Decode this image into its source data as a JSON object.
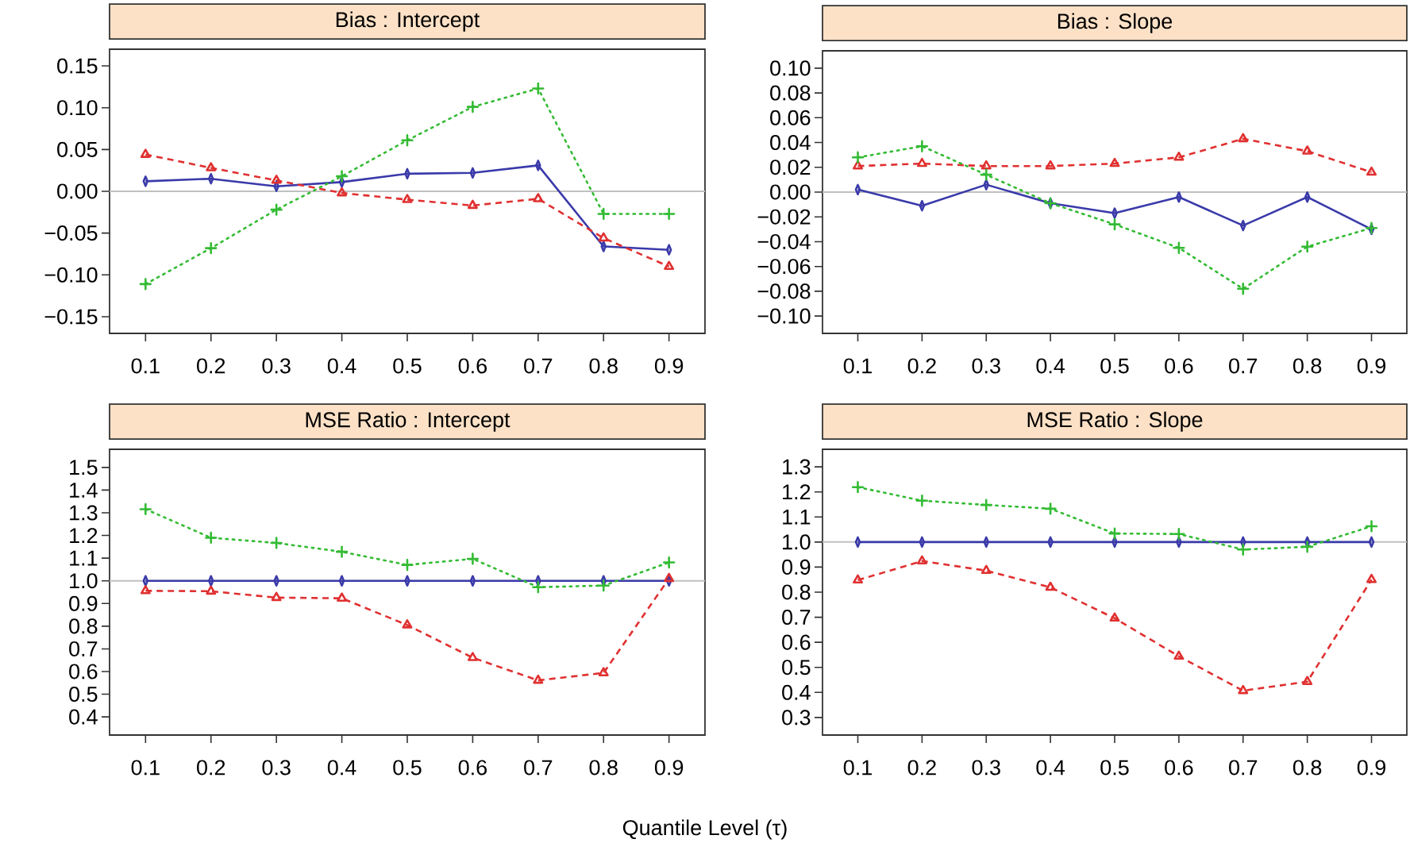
{
  "chart_data": [
    {
      "type": "line",
      "title": "Bias : Intercept",
      "x": [
        0.1,
        0.2,
        0.3,
        0.4,
        0.5,
        0.6,
        0.7,
        0.8,
        0.9
      ],
      "xlim": [
        0.045,
        0.955
      ],
      "xticks": [
        0.1,
        0.2,
        0.3,
        0.4,
        0.5,
        0.6,
        0.7,
        0.8,
        0.9
      ],
      "ylim": [
        -0.17,
        0.17
      ],
      "yticks": [
        {
          "value": -0.15,
          "label": "−0.15"
        },
        {
          "value": -0.1,
          "label": "−0.10"
        },
        {
          "value": -0.05,
          "label": "−0.05"
        },
        {
          "value": 0,
          "label": "0.00"
        },
        {
          "value": 0.05,
          "label": "0.05"
        },
        {
          "value": 0.1,
          "label": "0.10"
        },
        {
          "value": 0.15,
          "label": "0.15"
        }
      ],
      "ref_lines": [
        {
          "axis": "y",
          "value": 0,
          "color": "#c0c0c0"
        }
      ],
      "series": [
        {
          "color": "#3a3aaa",
          "marker": "diamond",
          "line_style": "solid",
          "values": [
            0.012,
            0.015,
            0.006,
            0.011,
            0.021,
            0.022,
            0.031,
            -0.066,
            -0.07
          ]
        },
        {
          "color": "#e03030",
          "marker": "triangle",
          "line_style": "dashed",
          "values": [
            0.044,
            0.028,
            0.013,
            -0.002,
            -0.01,
            -0.017,
            -0.009,
            -0.056,
            -0.09
          ]
        },
        {
          "color": "#33bb33",
          "marker": "cross",
          "line_style": "dotted",
          "values": [
            -0.111,
            -0.068,
            -0.022,
            0.018,
            0.061,
            0.101,
            0.123,
            -0.027,
            -0.027
          ]
        }
      ]
    },
    {
      "type": "line",
      "title": "Bias : Slope",
      "x": [
        0.1,
        0.2,
        0.3,
        0.4,
        0.5,
        0.6,
        0.7,
        0.8,
        0.9
      ],
      "xlim": [
        0.045,
        0.955
      ],
      "xticks": [
        0.1,
        0.2,
        0.3,
        0.4,
        0.5,
        0.6,
        0.7,
        0.8,
        0.9
      ],
      "ylim": [
        -0.114,
        0.114
      ],
      "yticks": [
        {
          "value": -0.1,
          "label": "−0.10"
        },
        {
          "value": -0.08,
          "label": "−0.08"
        },
        {
          "value": -0.06,
          "label": "−0.06"
        },
        {
          "value": -0.04,
          "label": "−0.04"
        },
        {
          "value": -0.02,
          "label": "−0.02"
        },
        {
          "value": 0,
          "label": "0.00"
        },
        {
          "value": 0.02,
          "label": "0.02"
        },
        {
          "value": 0.04,
          "label": "0.04"
        },
        {
          "value": 0.06,
          "label": "0.06"
        },
        {
          "value": 0.08,
          "label": "0.08"
        },
        {
          "value": 0.1,
          "label": "0.10"
        }
      ],
      "ref_lines": [
        {
          "axis": "y",
          "value": 0,
          "color": "#c0c0c0"
        }
      ],
      "series": [
        {
          "color": "#3a3aaa",
          "marker": "diamond",
          "line_style": "solid",
          "values": [
            0.002,
            -0.011,
            0.006,
            -0.009,
            -0.017,
            -0.004,
            -0.027,
            -0.004,
            -0.03
          ]
        },
        {
          "color": "#e03030",
          "marker": "triangle",
          "line_style": "dashed",
          "values": [
            0.021,
            0.023,
            0.021,
            0.021,
            0.023,
            0.028,
            0.043,
            0.033,
            0.016
          ]
        },
        {
          "color": "#33bb33",
          "marker": "cross",
          "line_style": "dotted",
          "values": [
            0.028,
            0.037,
            0.014,
            -0.009,
            -0.026,
            -0.045,
            -0.078,
            -0.044,
            -0.029
          ]
        }
      ]
    },
    {
      "type": "line",
      "title": "MSE Ratio : Intercept",
      "x": [
        0.1,
        0.2,
        0.3,
        0.4,
        0.5,
        0.6,
        0.7,
        0.8,
        0.9
      ],
      "xlim": [
        0.045,
        0.955
      ],
      "xticks": [
        0.1,
        0.2,
        0.3,
        0.4,
        0.5,
        0.6,
        0.7,
        0.8,
        0.9
      ],
      "ylim": [
        0.32,
        1.58
      ],
      "yticks": [
        {
          "value": 0.4,
          "label": "0.4"
        },
        {
          "value": 0.5,
          "label": "0.5"
        },
        {
          "value": 0.6,
          "label": "0.6"
        },
        {
          "value": 0.7,
          "label": "0.7"
        },
        {
          "value": 0.8,
          "label": "0.8"
        },
        {
          "value": 0.9,
          "label": "0.9"
        },
        {
          "value": 1,
          "label": "1.0"
        },
        {
          "value": 1.1,
          "label": "1.1"
        },
        {
          "value": 1.2,
          "label": "1.2"
        },
        {
          "value": 1.3,
          "label": "1.3"
        },
        {
          "value": 1.4,
          "label": "1.4"
        },
        {
          "value": 1.5,
          "label": "1.5"
        }
      ],
      "ref_lines": [
        {
          "axis": "y",
          "value": 1,
          "color": "#c0c0c0"
        }
      ],
      "series": [
        {
          "color": "#3a3aaa",
          "marker": "diamond",
          "line_style": "solid",
          "values": [
            1.0,
            1.0,
            1.0,
            1.0,
            1.0,
            1.0,
            1.0,
            1.0,
            1.0
          ]
        },
        {
          "color": "#e03030",
          "marker": "triangle",
          "line_style": "dashed",
          "values": [
            0.956,
            0.954,
            0.926,
            0.923,
            0.805,
            0.661,
            0.561,
            0.594,
            1.01
          ]
        },
        {
          "color": "#33bb33",
          "marker": "cross",
          "line_style": "dotted",
          "values": [
            1.316,
            1.19,
            1.167,
            1.128,
            1.07,
            1.097,
            0.972,
            0.979,
            1.081
          ]
        }
      ]
    },
    {
      "type": "line",
      "title": "MSE Ratio : Slope",
      "xlabel": "Quantile Level (τ)",
      "x": [
        0.1,
        0.2,
        0.3,
        0.4,
        0.5,
        0.6,
        0.7,
        0.8,
        0.9
      ],
      "xlim": [
        0.045,
        0.955
      ],
      "xticks": [
        0.1,
        0.2,
        0.3,
        0.4,
        0.5,
        0.6,
        0.7,
        0.8,
        0.9
      ],
      "ylim": [
        0.23,
        1.37
      ],
      "yticks": [
        {
          "value": 0.3,
          "label": "0.3"
        },
        {
          "value": 0.4,
          "label": "0.4"
        },
        {
          "value": 0.5,
          "label": "0.5"
        },
        {
          "value": 0.6,
          "label": "0.6"
        },
        {
          "value": 0.7,
          "label": "0.7"
        },
        {
          "value": 0.8,
          "label": "0.8"
        },
        {
          "value": 0.9,
          "label": "0.9"
        },
        {
          "value": 1,
          "label": "1.0"
        },
        {
          "value": 1.1,
          "label": "1.1"
        },
        {
          "value": 1.2,
          "label": "1.2"
        },
        {
          "value": 1.3,
          "label": "1.3"
        }
      ],
      "ref_lines": [
        {
          "axis": "y",
          "value": 1,
          "color": "#c0c0c0"
        }
      ],
      "series": [
        {
          "color": "#3a3aaa",
          "marker": "diamond",
          "line_style": "solid",
          "values": [
            1.0,
            1.0,
            1.0,
            1.0,
            1.0,
            1.0,
            1.0,
            1.0,
            1.0
          ]
        },
        {
          "color": "#e03030",
          "marker": "triangle",
          "line_style": "dashed",
          "values": [
            0.848,
            0.924,
            0.886,
            0.819,
            0.696,
            0.544,
            0.407,
            0.443,
            0.85
          ]
        },
        {
          "color": "#33bb33",
          "marker": "cross",
          "line_style": "dotted",
          "values": [
            1.219,
            1.165,
            1.148,
            1.133,
            1.034,
            1.032,
            0.97,
            0.981,
            1.063
          ]
        }
      ]
    }
  ]
}
